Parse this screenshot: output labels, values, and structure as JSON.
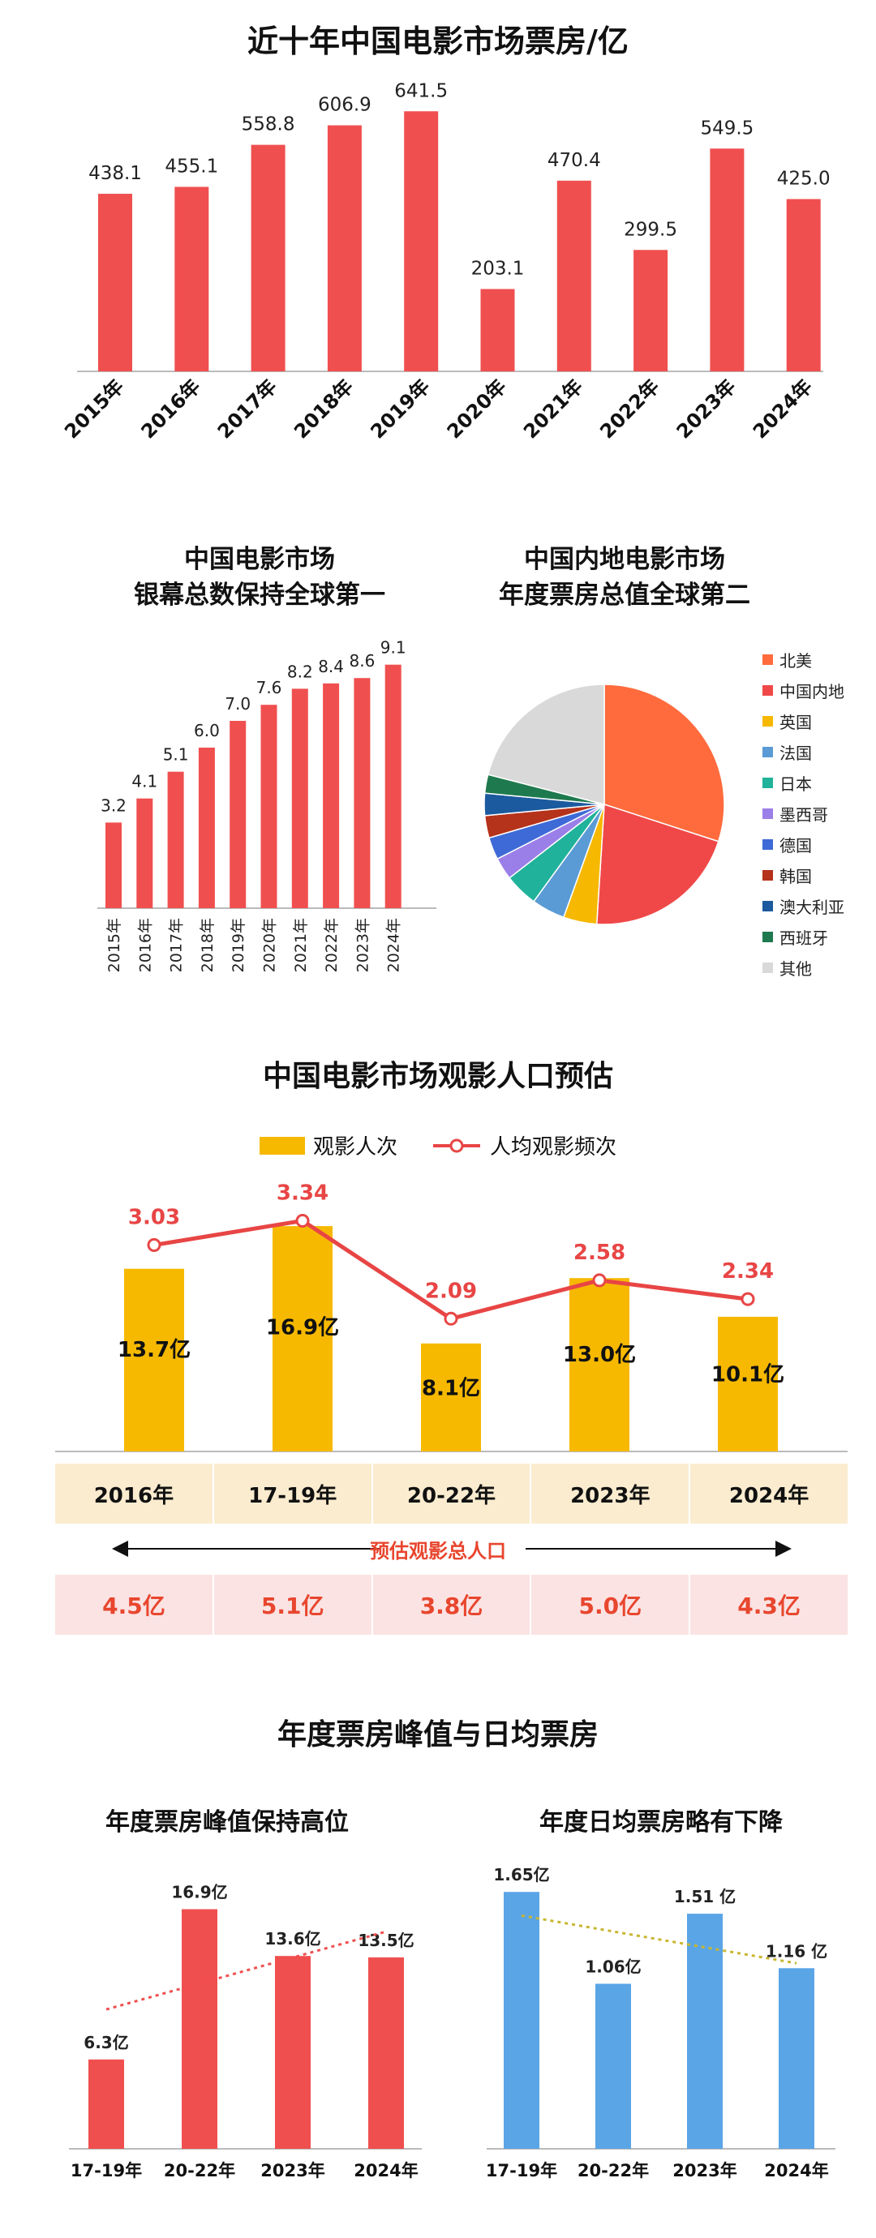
{
  "section1": {
    "title": "近十年中国电影市场票房/亿"
  },
  "section2": {
    "left_title_line1": "中国电影市场",
    "left_title_line2": "银幕总数保持全球第一",
    "right_title_line1": "中国内地电影市场",
    "right_title_line2": "年度票房总值全球第二"
  },
  "section3": {
    "title": "中国电影市场观影人口预估",
    "legend_bar": "观影人次",
    "legend_line": "人均观影频次",
    "arrow_label": "预估观影总人口",
    "periods": [
      "2016年",
      "17-19年",
      "20-22年",
      "2023年",
      "2024年"
    ],
    "total_population": [
      "4.5亿",
      "5.1亿",
      "3.8亿",
      "5.0亿",
      "4.3亿"
    ]
  },
  "section4": {
    "title": "年度票房峰值与日均票房",
    "left_title": "年度票房峰值保持高位",
    "right_title": "年度日均票房略有下降"
  },
  "colors": {
    "red": "#f04f4f",
    "orange": "#f6b900",
    "line_red": "#e84545",
    "blue": "#5aa5e6",
    "trend_red": "#f04f4f",
    "trend_olive": "#c8b630",
    "axis": "#bbbbbb"
  },
  "chart_data": [
    {
      "id": "box_office",
      "type": "bar",
      "title": "近十年中国电影市场票房/亿",
      "categories": [
        "2015年",
        "2016年",
        "2017年",
        "2018年",
        "2019年",
        "2020年",
        "2021年",
        "2022年",
        "2023年",
        "2024年"
      ],
      "values": [
        438.1,
        455.1,
        558.8,
        606.9,
        641.5,
        203.1,
        470.4,
        299.5,
        549.5,
        425.0
      ],
      "value_labels": [
        "438.1",
        "455.1",
        "558.8",
        "606.9",
        "641.5",
        "203.1",
        "470.4",
        "299.5",
        "549.5",
        "425.0"
      ],
      "ylim": [
        0,
        700
      ],
      "grid": false
    },
    {
      "id": "screens",
      "type": "bar",
      "title": "中国电影市场 银幕总数保持全球第一",
      "categories": [
        "2015年",
        "2016年",
        "2017年",
        "2018年",
        "2019年",
        "2020年",
        "2021年",
        "2022年",
        "2023年",
        "2024年"
      ],
      "values": [
        3.2,
        4.1,
        5.1,
        6.0,
        7.0,
        7.6,
        8.2,
        8.4,
        8.6,
        9.1
      ],
      "value_labels": [
        "3.2",
        "4.1",
        "5.1",
        "6.0",
        "7.0",
        "7.6",
        "8.2",
        "8.4",
        "8.6",
        "9.1"
      ],
      "ylim": [
        0,
        10
      ],
      "grid": false
    },
    {
      "id": "global_share",
      "type": "pie",
      "title": "中国内地电影市场 年度票房总值全球第二",
      "labels": [
        "北美",
        "中国内地",
        "英国",
        "法国",
        "日本",
        "墨西哥",
        "德国",
        "韩国",
        "澳大利亚",
        "西班牙",
        "其他"
      ],
      "values": [
        30.0,
        21.0,
        4.5,
        4.5,
        4.5,
        3.0,
        3.0,
        3.0,
        3.0,
        2.5,
        21.0
      ],
      "colors": [
        "#ff6b3d",
        "#f04848",
        "#f6b800",
        "#5b9bd5",
        "#20b29a",
        "#9b7fe8",
        "#3d6ad6",
        "#b5321b",
        "#1b5a9e",
        "#1e7a4e",
        "#d9d9d9"
      ],
      "legend": "right"
    },
    {
      "id": "audience",
      "type": "bar",
      "title": "中国电影市场观影人口预估",
      "categories": [
        "2016年",
        "17-19年",
        "20-22年",
        "2023年",
        "2024年"
      ],
      "series": [
        {
          "name": "观影人次",
          "type": "bar",
          "values": [
            13.7,
            16.9,
            8.1,
            13.0,
            10.1
          ],
          "value_labels": [
            "13.7亿",
            "16.9亿",
            "8.1亿",
            "13.0亿",
            "10.1亿"
          ]
        },
        {
          "name": "人均观影频次",
          "type": "line",
          "values": [
            3.03,
            3.34,
            2.09,
            2.58,
            2.34
          ],
          "value_labels": [
            "3.03",
            "3.34",
            "2.09",
            "2.58",
            "2.34"
          ]
        }
      ],
      "ylim": [
        0,
        18
      ],
      "legend": "top"
    },
    {
      "id": "peak",
      "type": "bar",
      "title": "年度票房峰值保持高位",
      "categories": [
        "17-19年",
        "20-22年",
        "2023年",
        "2024年"
      ],
      "values": [
        6.3,
        16.9,
        13.6,
        13.5
      ],
      "value_labels": [
        "6.3亿",
        "16.9亿",
        "13.6亿",
        "13.5亿"
      ],
      "ylim": [
        0,
        17.5
      ],
      "trendline": true
    },
    {
      "id": "daily",
      "type": "bar",
      "title": "年度日均票房略有下降",
      "categories": [
        "17-19年",
        "20-22年",
        "2023年",
        "2024年"
      ],
      "values": [
        1.65,
        1.06,
        1.51,
        1.16
      ],
      "value_labels": [
        "1.65亿",
        "1.06亿",
        "1.51 亿",
        "1.16 亿"
      ],
      "ylim": [
        0,
        1.75
      ],
      "trendline": true
    }
  ]
}
